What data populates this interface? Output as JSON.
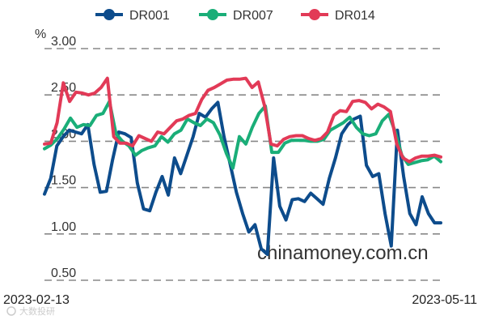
{
  "chart_data": {
    "type": "line",
    "unit": "%",
    "ylim": [
      0.5,
      3.0
    ],
    "yticks": [
      "3.00",
      "2.50",
      "2.00",
      "1.50",
      "1.00",
      "0.50"
    ],
    "ytick_values": [
      3.0,
      2.5,
      2.0,
      1.5,
      1.0,
      0.5
    ],
    "x_start_label": "2023-02-13",
    "x_end_label": "2023-05-11",
    "grid": true,
    "legend_position": "top",
    "watermark": "chinamoney.com.cn",
    "logo_text": "大数投研",
    "series": [
      {
        "name": "DR001",
        "color": "#0d4c8c",
        "values": [
          1.43,
          1.6,
          1.95,
          2.05,
          2.12,
          2.1,
          2.08,
          2.18,
          1.75,
          1.45,
          1.46,
          1.8,
          2.1,
          2.08,
          2.04,
          1.55,
          1.27,
          1.25,
          1.45,
          1.62,
          1.42,
          1.82,
          1.65,
          1.85,
          2.05,
          2.3,
          2.26,
          2.35,
          2.42,
          2.05,
          1.75,
          1.45,
          1.22,
          1.02,
          1.1,
          0.84,
          0.78,
          1.82,
          1.3,
          1.15,
          1.37,
          1.38,
          1.35,
          1.44,
          1.38,
          1.32,
          1.6,
          1.82,
          2.08,
          2.18,
          2.24,
          2.27,
          1.74,
          1.62,
          1.65,
          1.22,
          0.87,
          2.12,
          1.62,
          1.22,
          1.1,
          1.4,
          1.22,
          1.12,
          1.12
        ]
      },
      {
        "name": "DR007",
        "color": "#1aae78",
        "values": [
          1.92,
          1.96,
          2.03,
          2.13,
          2.25,
          2.15,
          2.18,
          2.17,
          2.28,
          2.3,
          2.43,
          2.08,
          2.0,
          1.95,
          1.85,
          1.9,
          1.93,
          1.95,
          2.05,
          1.99,
          2.08,
          2.12,
          2.24,
          2.2,
          2.17,
          2.24,
          2.2,
          2.07,
          1.87,
          1.71,
          2.05,
          1.97,
          2.15,
          2.3,
          2.38,
          1.88,
          1.88,
          1.98,
          2.01,
          2.01,
          2.01,
          2.0,
          2.0,
          2.02,
          2.12,
          2.16,
          2.2,
          2.26,
          2.15,
          2.08,
          2.06,
          2.08,
          2.22,
          2.29,
          2.1,
          1.85,
          1.75,
          1.77,
          1.79,
          1.8,
          1.84,
          1.78
        ]
      },
      {
        "name": "DR014",
        "color": "#e23a57",
        "values": [
          1.97,
          1.98,
          2.2,
          2.63,
          2.43,
          2.53,
          2.52,
          2.5,
          2.52,
          2.58,
          2.68,
          2.05,
          1.98,
          1.98,
          1.95,
          2.06,
          2.03,
          2.0,
          2.1,
          2.08,
          2.15,
          2.22,
          2.24,
          2.28,
          2.3,
          2.45,
          2.55,
          2.58,
          2.62,
          2.66,
          2.67,
          2.67,
          2.68,
          2.58,
          2.64,
          2.38,
          1.97,
          1.95,
          2.02,
          2.05,
          2.06,
          2.06,
          2.03,
          2.01,
          2.03,
          2.1,
          2.28,
          2.33,
          2.32,
          2.43,
          2.44,
          2.42,
          2.35,
          2.4,
          2.37,
          2.32,
          1.97,
          1.82,
          1.78,
          1.82,
          1.84,
          1.84,
          1.85,
          1.83
        ]
      }
    ]
  }
}
